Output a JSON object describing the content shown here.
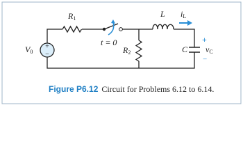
{
  "circuit": {
    "source": {
      "main": "V",
      "sub": "0",
      "plus": "+",
      "minus": "−"
    },
    "r1": {
      "main": "R",
      "sub": "1"
    },
    "switch": {
      "label": "t = 0"
    },
    "r2": {
      "main": "R",
      "sub": "2"
    },
    "inductor": {
      "main": "L"
    },
    "current": {
      "main": "i",
      "sub": "L"
    },
    "capacitor": {
      "main": "C",
      "voltage_main": "v",
      "voltage_sub": "C",
      "plus": "+",
      "minus": "−"
    }
  },
  "caption": {
    "label": "Figure P6.12",
    "text": "Circuit for Problems 6.12 to 6.14."
  }
}
